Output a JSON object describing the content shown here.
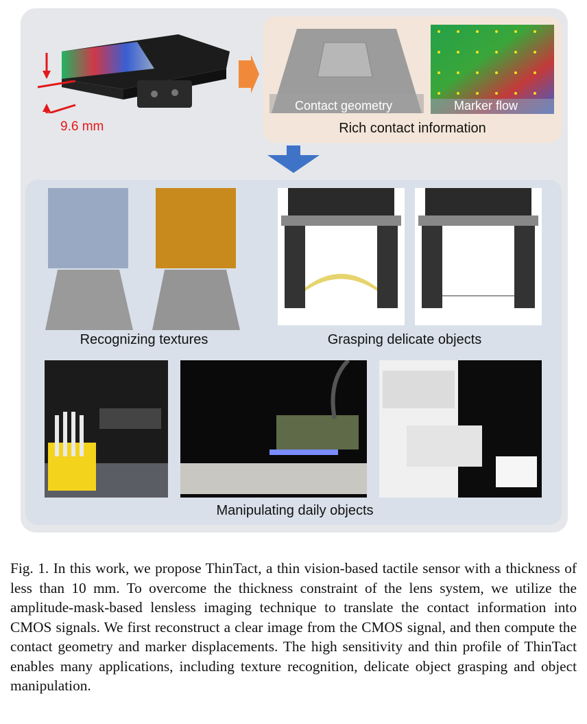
{
  "figure": {
    "thickness_label": "9.6 mm",
    "contact_geometry_label": "Contact geometry",
    "marker_flow_label": "Marker flow",
    "rich_info_label": "Rich contact information",
    "recognizing_label": "Recognizing textures",
    "grasping_label": "Grasping delicate objects",
    "manipulating_label": "Manipulating daily objects"
  },
  "caption": {
    "text": "Fig. 1.  In this work, we propose ThinTact, a thin vision-based tactile sensor with a thickness of less than 10 mm. To overcome the thickness constraint of the lens system, we utilize the amplitude-mask-based lensless imaging technique to translate the contact information into CMOS signals. We first reconstruct a clear image from the CMOS signal, and then compute the contact geometry and marker displacements. The high sensitivity and thin profile of ThinTact enables many applications, including texture recognition, delicate object grasping and object manipulation."
  },
  "colors": {
    "red": "#e2191b",
    "orange_arrow": "#f08a3a",
    "blue_arrow": "#3f73c8"
  }
}
